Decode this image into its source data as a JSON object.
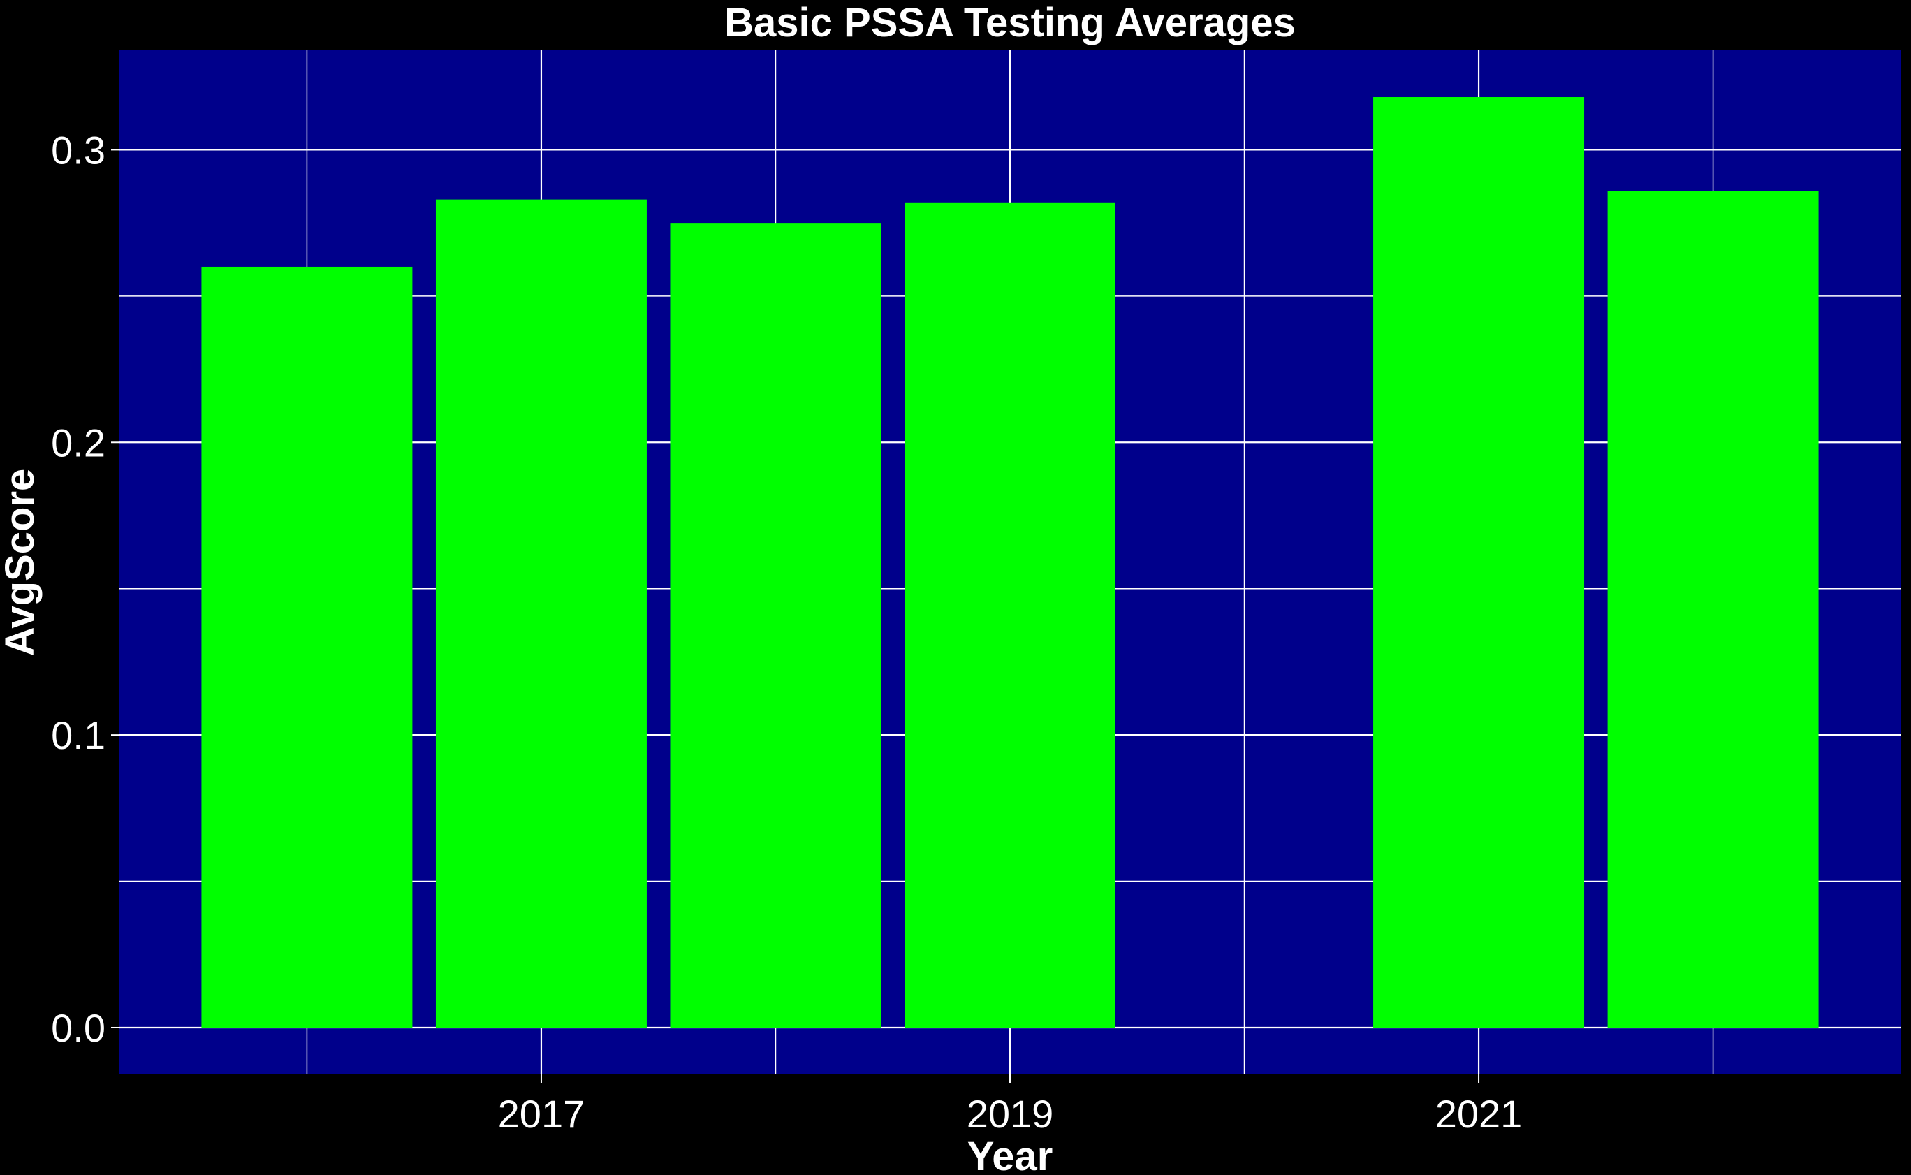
{
  "chart_data": {
    "type": "bar",
    "title": "Basic PSSA Testing Averages",
    "xlabel": "Year",
    "ylabel": "AvgScore",
    "x": [
      2016,
      2017,
      2018,
      2019,
      2021,
      2022
    ],
    "values": [
      0.26,
      0.283,
      0.275,
      0.282,
      0.318,
      0.286
    ],
    "xlim": [
      2015.2,
      2022.8
    ],
    "ylim": [
      -0.016,
      0.334
    ],
    "x_ticks": [
      2017,
      2019,
      2021
    ],
    "x_tick_labels": [
      "2017",
      "2019",
      "2021"
    ],
    "x_grid_major": [
      2017,
      2019,
      2021
    ],
    "x_grid_minor": [
      2016,
      2018,
      2020,
      2022
    ],
    "y_ticks": [
      0.0,
      0.1,
      0.2,
      0.3
    ],
    "y_tick_labels": [
      "0.0",
      "0.1",
      "0.2",
      "0.3"
    ],
    "y_grid_minor": [
      0.05,
      0.15,
      0.25
    ],
    "bar_width": 0.9,
    "grid": true,
    "legend": "none",
    "colors": {
      "page_background": "#000000",
      "panel_background": "#00008B",
      "bar_fill": "#00FF00",
      "grid": "#FFFFFF",
      "text": "#FFFFFF"
    }
  }
}
